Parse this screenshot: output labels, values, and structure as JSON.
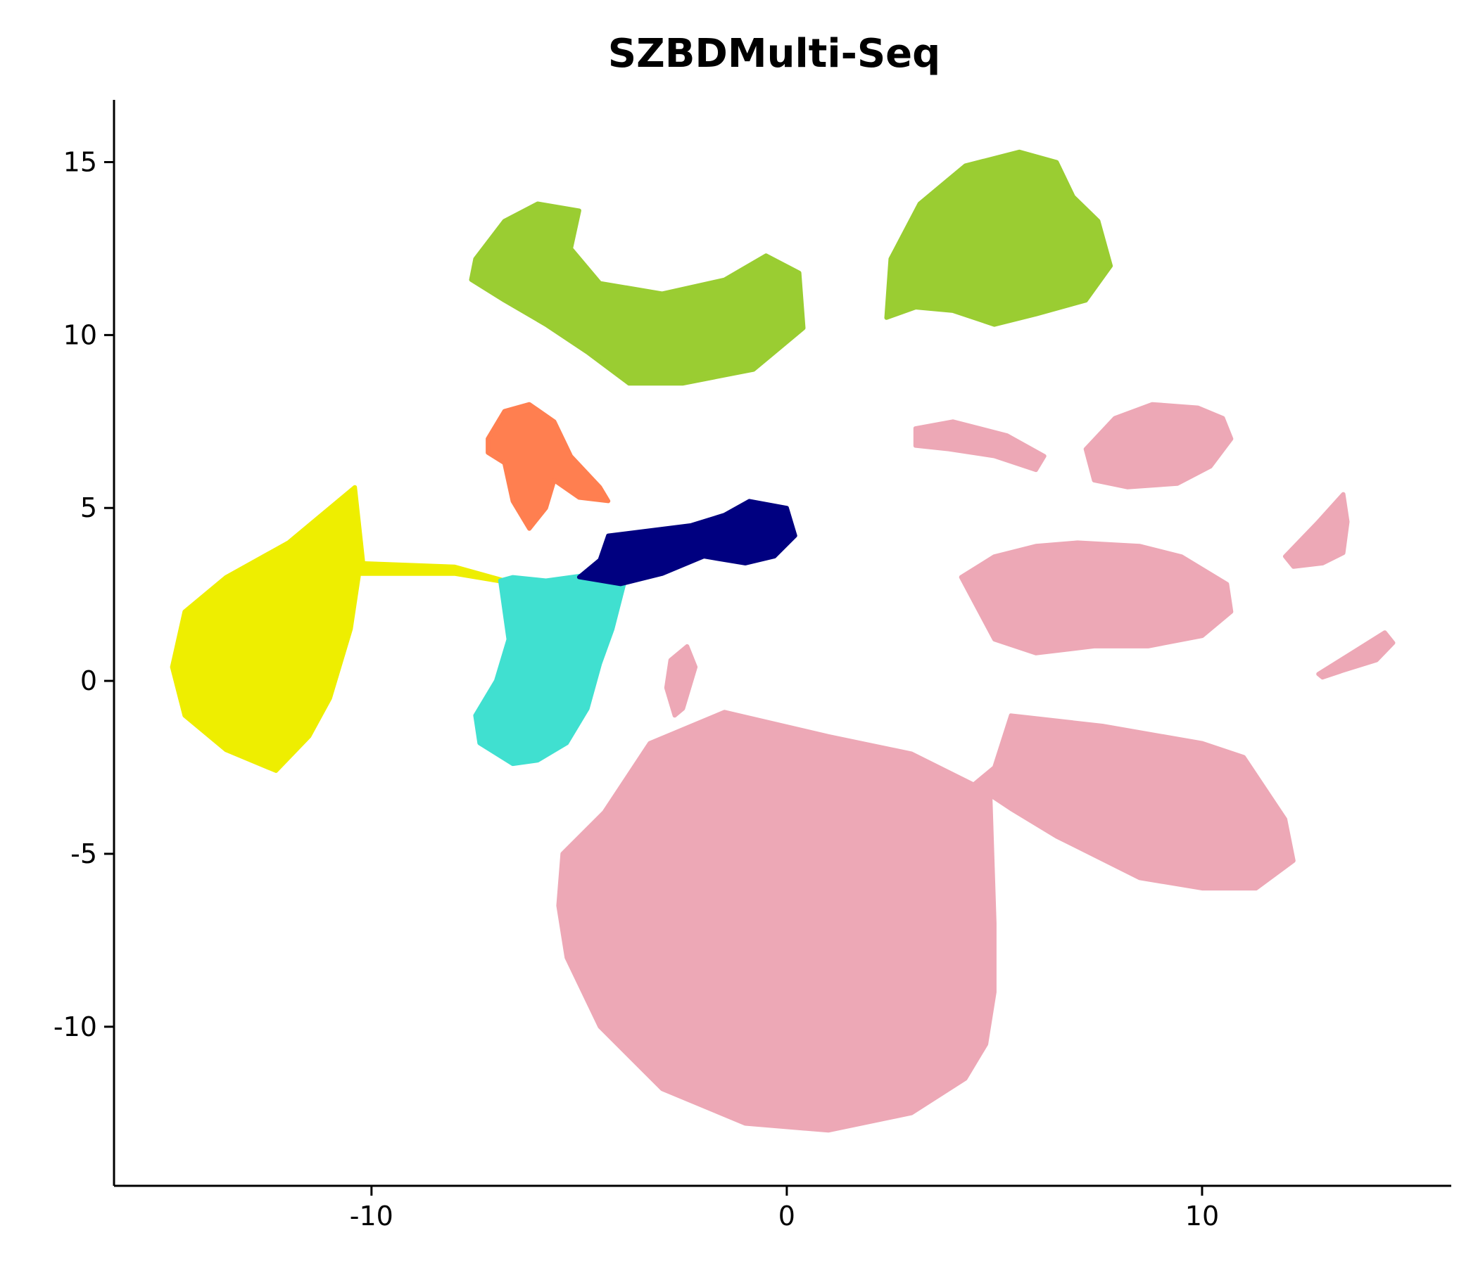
{
  "chart_data": {
    "type": "scatter",
    "title": "SZBDMulti-Seq",
    "xlabel": "",
    "ylabel": "",
    "xlim": [
      -16.2,
      16.0
    ],
    "ylim": [
      -14.6,
      16.8
    ],
    "x_ticks": [
      {
        "value": -10,
        "label": "-10"
      },
      {
        "value": 0,
        "label": "0"
      },
      {
        "value": 10,
        "label": "10"
      }
    ],
    "y_ticks": [
      {
        "value": 15,
        "label": "15"
      },
      {
        "value": 10,
        "label": "10"
      },
      {
        "value": 5,
        "label": "5"
      },
      {
        "value": 0,
        "label": "0"
      },
      {
        "value": -5,
        "label": "-5"
      },
      {
        "value": -10,
        "label": "-10"
      }
    ],
    "grid": false,
    "legend": "none",
    "clusters": [
      {
        "color": "#9ACD32",
        "outline": [
          [
            -7.5,
            12.2
          ],
          [
            -6.8,
            13.3
          ],
          [
            -6.0,
            13.8
          ],
          [
            -5.0,
            13.6
          ],
          [
            -5.2,
            12.5
          ],
          [
            -4.5,
            11.5
          ],
          [
            -3.0,
            11.2
          ],
          [
            -1.5,
            11.6
          ],
          [
            -0.5,
            12.3
          ],
          [
            0.3,
            11.8
          ],
          [
            0.4,
            10.2
          ],
          [
            -0.8,
            9.0
          ],
          [
            -2.5,
            8.6
          ],
          [
            -3.8,
            8.6
          ],
          [
            -4.8,
            9.5
          ],
          [
            -5.8,
            10.3
          ],
          [
            -6.8,
            11.0
          ],
          [
            -7.6,
            11.6
          ]
        ]
      },
      {
        "color": "#9ACD32",
        "outline": [
          [
            2.4,
            10.5
          ],
          [
            2.5,
            12.2
          ],
          [
            3.2,
            13.8
          ],
          [
            4.3,
            14.9
          ],
          [
            5.6,
            15.3
          ],
          [
            6.5,
            15.0
          ],
          [
            6.9,
            14.0
          ],
          [
            7.5,
            13.3
          ],
          [
            7.8,
            12.0
          ],
          [
            7.2,
            11.0
          ],
          [
            6.0,
            10.6
          ],
          [
            5.0,
            10.3
          ],
          [
            4.0,
            10.7
          ],
          [
            3.1,
            10.8
          ]
        ]
      },
      {
        "color": "#FF7F50",
        "outline": [
          [
            -7.2,
            7.0
          ],
          [
            -6.8,
            7.8
          ],
          [
            -6.2,
            8.0
          ],
          [
            -5.6,
            7.5
          ],
          [
            -5.2,
            6.5
          ],
          [
            -4.5,
            5.6
          ],
          [
            -4.3,
            5.2
          ],
          [
            -5.0,
            5.3
          ],
          [
            -5.6,
            5.8
          ],
          [
            -5.8,
            5.0
          ],
          [
            -6.2,
            4.4
          ],
          [
            -6.6,
            5.2
          ],
          [
            -6.8,
            6.3
          ],
          [
            -7.2,
            6.6
          ]
        ]
      },
      {
        "color": "#EEEE00",
        "outline": [
          [
            -14.8,
            0.4
          ],
          [
            -14.5,
            2.0
          ],
          [
            -13.5,
            3.0
          ],
          [
            -12.0,
            4.0
          ],
          [
            -10.4,
            5.6
          ],
          [
            -10.2,
            3.4
          ],
          [
            -8.0,
            3.3
          ],
          [
            -6.5,
            2.8
          ],
          [
            -8.0,
            3.1
          ],
          [
            -10.3,
            3.1
          ],
          [
            -10.5,
            1.5
          ],
          [
            -11.0,
            -0.5
          ],
          [
            -11.5,
            -1.6
          ],
          [
            -12.3,
            -2.6
          ],
          [
            -13.5,
            -2.0
          ],
          [
            -14.5,
            -1.0
          ]
        ]
      },
      {
        "color": "#40E0D0",
        "outline": [
          [
            -6.9,
            2.9
          ],
          [
            -6.6,
            3.0
          ],
          [
            -5.8,
            2.9
          ],
          [
            -4.6,
            3.1
          ],
          [
            -3.9,
            2.9
          ],
          [
            -4.2,
            1.5
          ],
          [
            -4.5,
            0.5
          ],
          [
            -4.8,
            -0.8
          ],
          [
            -5.3,
            -1.8
          ],
          [
            -6.0,
            -2.3
          ],
          [
            -6.6,
            -2.4
          ],
          [
            -7.4,
            -1.8
          ],
          [
            -7.5,
            -1.0
          ],
          [
            -7.0,
            0.0
          ],
          [
            -6.7,
            1.2
          ]
        ]
      },
      {
        "color": "#000080",
        "outline": [
          [
            -4.3,
            4.2
          ],
          [
            -2.3,
            4.5
          ],
          [
            -1.5,
            4.8
          ],
          [
            -0.9,
            5.2
          ],
          [
            0.0,
            5.0
          ],
          [
            0.2,
            4.2
          ],
          [
            -0.3,
            3.6
          ],
          [
            -1.0,
            3.4
          ],
          [
            -2.0,
            3.6
          ],
          [
            -3.0,
            3.1
          ],
          [
            -4.0,
            2.8
          ],
          [
            -5.0,
            3.0
          ],
          [
            -4.5,
            3.5
          ]
        ]
      },
      {
        "color": "#EDA8B6",
        "outline": [
          [
            -5.4,
            -5.0
          ],
          [
            -4.4,
            -3.8
          ],
          [
            -3.3,
            -1.8
          ],
          [
            -1.5,
            -0.9
          ],
          [
            1.0,
            -1.6
          ],
          [
            3.0,
            -2.1
          ],
          [
            4.5,
            -3.0
          ],
          [
            5.0,
            -2.5
          ],
          [
            5.4,
            -1.0
          ],
          [
            7.6,
            -1.3
          ],
          [
            10.0,
            -1.8
          ],
          [
            11.0,
            -2.2
          ],
          [
            12.0,
            -4.0
          ],
          [
            12.2,
            -5.2
          ],
          [
            11.3,
            -6.0
          ],
          [
            10.0,
            -6.0
          ],
          [
            8.5,
            -5.7
          ],
          [
            6.5,
            -4.5
          ],
          [
            5.4,
            -3.7
          ],
          [
            4.9,
            -3.3
          ],
          [
            5.0,
            -7.0
          ],
          [
            5.0,
            -9.0
          ],
          [
            4.8,
            -10.5
          ],
          [
            4.3,
            -11.5
          ],
          [
            3.0,
            -12.5
          ],
          [
            1.0,
            -13.0
          ],
          [
            -1.0,
            -12.8
          ],
          [
            -3.0,
            -11.8
          ],
          [
            -4.5,
            -10.0
          ],
          [
            -5.3,
            -8.0
          ],
          [
            -5.5,
            -6.5
          ]
        ]
      },
      {
        "color": "#EDA8B6",
        "outline": [
          [
            4.2,
            3.0
          ],
          [
            5.0,
            3.6
          ],
          [
            6.0,
            3.9
          ],
          [
            7.0,
            4.0
          ],
          [
            8.5,
            3.9
          ],
          [
            9.5,
            3.6
          ],
          [
            10.6,
            2.8
          ],
          [
            10.7,
            2.0
          ],
          [
            10.0,
            1.3
          ],
          [
            8.7,
            1.0
          ],
          [
            7.4,
            1.0
          ],
          [
            6.0,
            0.8
          ],
          [
            5.0,
            1.2
          ],
          [
            4.6,
            2.1
          ]
        ]
      },
      {
        "color": "#EDA8B6",
        "outline": [
          [
            7.2,
            6.7
          ],
          [
            7.9,
            7.6
          ],
          [
            8.8,
            8.0
          ],
          [
            9.9,
            7.9
          ],
          [
            10.5,
            7.6
          ],
          [
            10.7,
            7.0
          ],
          [
            10.2,
            6.2
          ],
          [
            9.4,
            5.7
          ],
          [
            8.2,
            5.6
          ],
          [
            7.4,
            5.8
          ]
        ]
      },
      {
        "color": "#EDA8B6",
        "outline": [
          [
            12.0,
            3.6
          ],
          [
            12.8,
            4.6
          ],
          [
            13.4,
            5.4
          ],
          [
            13.5,
            4.6
          ],
          [
            13.4,
            3.7
          ],
          [
            12.9,
            3.4
          ],
          [
            12.2,
            3.3
          ]
        ]
      },
      {
        "color": "#EDA8B6",
        "outline": [
          [
            12.8,
            0.2
          ],
          [
            13.6,
            0.8
          ],
          [
            14.4,
            1.4
          ],
          [
            14.6,
            1.1
          ],
          [
            14.2,
            0.6
          ],
          [
            13.4,
            0.3
          ],
          [
            12.9,
            0.1
          ]
        ]
      },
      {
        "color": "#EDA8B6",
        "outline": [
          [
            -2.8,
            0.6
          ],
          [
            -2.4,
            1.0
          ],
          [
            -2.2,
            0.4
          ],
          [
            -2.5,
            -0.8
          ],
          [
            -2.7,
            -1.0
          ],
          [
            -2.9,
            -0.2
          ]
        ]
      },
      {
        "color": "#EDA8B6",
        "outline": [
          [
            3.1,
            7.3
          ],
          [
            4.0,
            7.5
          ],
          [
            5.3,
            7.1
          ],
          [
            6.2,
            6.5
          ],
          [
            6.0,
            6.1
          ],
          [
            5.0,
            6.5
          ],
          [
            3.9,
            6.7
          ],
          [
            3.1,
            6.8
          ]
        ]
      }
    ]
  }
}
